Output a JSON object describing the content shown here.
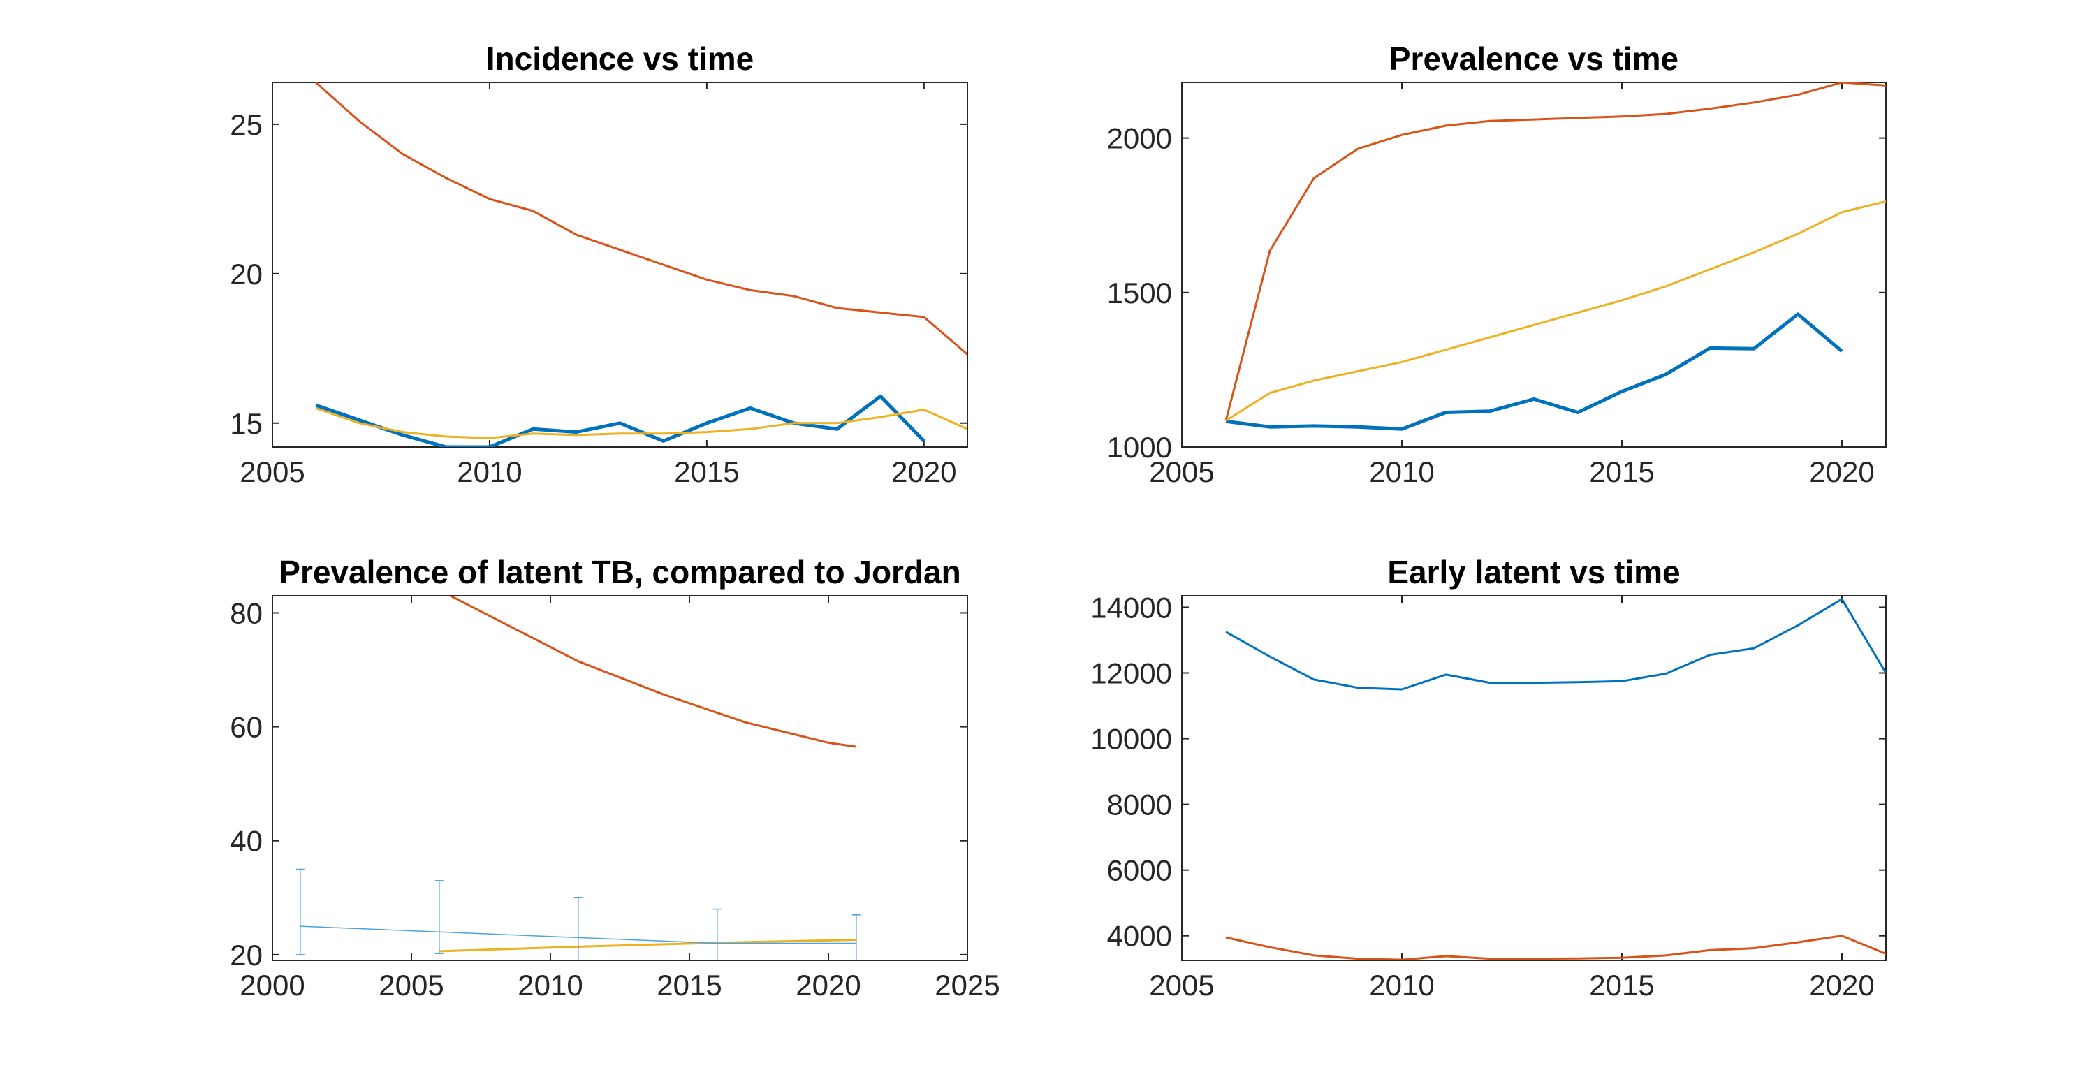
{
  "colors": {
    "blue": "#0072BD",
    "orange": "#D95319",
    "yellow": "#EDB120",
    "light_blue": "#4DA3E0",
    "axis": "#262626",
    "background": "#ffffff"
  },
  "chart_data": [
    {
      "type": "line",
      "title": "Incidence vs time",
      "xlabel": "",
      "ylabel": "",
      "xlim": [
        2005,
        2021
      ],
      "ylim": [
        14.2,
        26.4
      ],
      "xticks": [
        2005,
        2010,
        2015,
        2020
      ],
      "xtick_labels": [
        "2005",
        "2010",
        "2015",
        "2020"
      ],
      "yticks": [
        15,
        20,
        25
      ],
      "ytick_labels": [
        "15",
        "20",
        "25"
      ],
      "grid": false,
      "legend": null,
      "series": [
        {
          "color": "#D95319",
          "width": 3,
          "x": [
            2006,
            2007,
            2008,
            2009,
            2010,
            2011,
            2012,
            2013,
            2014,
            2015,
            2016,
            2017,
            2018,
            2019,
            2020,
            2021
          ],
          "y": [
            26.4,
            25.1,
            24.0,
            23.2,
            22.5,
            22.1,
            21.3,
            20.8,
            20.3,
            19.8,
            19.45,
            19.25,
            18.85,
            18.7,
            18.55,
            17.3
          ]
        },
        {
          "color": "#0072BD",
          "width": 5,
          "x": [
            2006,
            2007,
            2008,
            2009,
            2010,
            2011,
            2012,
            2013,
            2014,
            2015,
            2016,
            2017,
            2018,
            2019,
            2020
          ],
          "y": [
            15.6,
            15.1,
            14.6,
            14.2,
            14.2,
            14.8,
            14.7,
            15.0,
            14.4,
            15.0,
            15.5,
            15.0,
            14.8,
            15.9,
            14.4
          ]
        },
        {
          "color": "#EDB120",
          "width": 3,
          "x": [
            2006,
            2007,
            2008,
            2009,
            2010,
            2011,
            2012,
            2013,
            2014,
            2015,
            2016,
            2017,
            2018,
            2019,
            2020,
            2021
          ],
          "y": [
            15.5,
            15.0,
            14.7,
            14.55,
            14.5,
            14.65,
            14.6,
            14.65,
            14.65,
            14.7,
            14.8,
            15.0,
            15.0,
            15.2,
            15.45,
            14.8
          ]
        }
      ]
    },
    {
      "type": "line",
      "title": "Prevalence vs time",
      "xlabel": "",
      "ylabel": "",
      "xlim": [
        2005,
        2021
      ],
      "ylim": [
        1000,
        2180
      ],
      "xticks": [
        2005,
        2010,
        2015,
        2020
      ],
      "xtick_labels": [
        "2005",
        "2010",
        "2015",
        "2020"
      ],
      "yticks": [
        1000,
        1500,
        2000
      ],
      "ytick_labels": [
        "1000",
        "1500",
        "2000"
      ],
      "grid": false,
      "legend": null,
      "series": [
        {
          "color": "#D95319",
          "width": 3,
          "x": [
            2006,
            2007,
            2008,
            2009,
            2010,
            2011,
            2012,
            2013,
            2014,
            2015,
            2016,
            2017,
            2018,
            2019,
            2020,
            2021
          ],
          "y": [
            1085,
            1635,
            1870,
            1965,
            2010,
            2040,
            2055,
            2060,
            2065,
            2070,
            2078,
            2095,
            2115,
            2140,
            2180,
            2170
          ]
        },
        {
          "color": "#0072BD",
          "width": 5,
          "x": [
            2006,
            2007,
            2008,
            2009,
            2010,
            2011,
            2012,
            2013,
            2014,
            2015,
            2016,
            2017,
            2018,
            2019,
            2020
          ],
          "y": [
            1083,
            1065,
            1068,
            1065,
            1058,
            1112,
            1116,
            1155,
            1112,
            1180,
            1235,
            1320,
            1318,
            1430,
            1310
          ]
        },
        {
          "color": "#EDB120",
          "width": 3,
          "x": [
            2006,
            2007,
            2008,
            2009,
            2010,
            2011,
            2012,
            2013,
            2014,
            2015,
            2016,
            2017,
            2018,
            2019,
            2020,
            2021
          ],
          "y": [
            1085,
            1175,
            1215,
            1245,
            1275,
            1315,
            1355,
            1395,
            1435,
            1475,
            1520,
            1575,
            1630,
            1690,
            1760,
            1795
          ]
        }
      ]
    },
    {
      "type": "line",
      "title": "Prevalence of latent TB, compared to Jordan",
      "xlabel": "",
      "ylabel": "",
      "xlim": [
        2000,
        2025
      ],
      "ylim": [
        19,
        83
      ],
      "xticks": [
        2000,
        2005,
        2010,
        2015,
        2020,
        2025
      ],
      "xtick_labels": [
        "2000",
        "2005",
        "2010",
        "2015",
        "2020",
        "2025"
      ],
      "yticks": [
        20,
        40,
        60,
        80
      ],
      "ytick_labels": [
        "20",
        "40",
        "60",
        "80"
      ],
      "grid": false,
      "legend": null,
      "series": [
        {
          "color": "#D95319",
          "width": 3,
          "x": [
            2006,
            2008,
            2011,
            2014,
            2017,
            2020,
            2021
          ],
          "y": [
            84,
            79,
            71.5,
            65.8,
            60.8,
            57.2,
            56.5
          ]
        },
        {
          "color": "#EDB120",
          "width": 3,
          "x": [
            2006,
            2011,
            2016,
            2021
          ],
          "y": [
            20.6,
            21.4,
            22.1,
            22.6
          ]
        },
        {
          "color": "#4DA3E0",
          "width": 1.5,
          "x": [
            2001,
            2006,
            2011,
            2016,
            2021
          ],
          "y": [
            25,
            24,
            23,
            22,
            22
          ],
          "errorbars": {
            "lower": [
              20,
              20.2,
              19,
              19,
              19
            ],
            "upper": [
              35,
              33,
              30,
              28,
              27
            ]
          }
        }
      ]
    },
    {
      "type": "line",
      "title": "Early latent vs time",
      "xlabel": "",
      "ylabel": "",
      "xlim": [
        2005,
        2021
      ],
      "ylim": [
        3250,
        14350
      ],
      "xticks": [
        2005,
        2010,
        2015,
        2020
      ],
      "xtick_labels": [
        "2005",
        "2010",
        "2015",
        "2020"
      ],
      "yticks": [
        4000,
        6000,
        8000,
        10000,
        12000,
        14000
      ],
      "ytick_labels": [
        "4000",
        "6000",
        "8000",
        "10000",
        "12000",
        "14000"
      ],
      "grid": false,
      "legend": null,
      "series": [
        {
          "color": "#0072BD",
          "width": 3,
          "x": [
            2006,
            2007,
            2008,
            2009,
            2010,
            2011,
            2012,
            2013,
            2014,
            2015,
            2016,
            2017,
            2018,
            2019,
            2020,
            2021
          ],
          "y": [
            13250,
            12500,
            11800,
            11550,
            11500,
            11950,
            11700,
            11700,
            11720,
            11750,
            11980,
            12550,
            12750,
            13450,
            14250,
            12000
          ]
        },
        {
          "color": "#D95319",
          "width": 3,
          "x": [
            2006,
            2007,
            2008,
            2009,
            2010,
            2011,
            2012,
            2013,
            2014,
            2015,
            2016,
            2017,
            2018,
            2019,
            2020,
            2021
          ],
          "y": [
            3950,
            3650,
            3400,
            3300,
            3270,
            3380,
            3300,
            3300,
            3310,
            3330,
            3400,
            3560,
            3620,
            3800,
            4000,
            3450
          ]
        }
      ]
    }
  ]
}
